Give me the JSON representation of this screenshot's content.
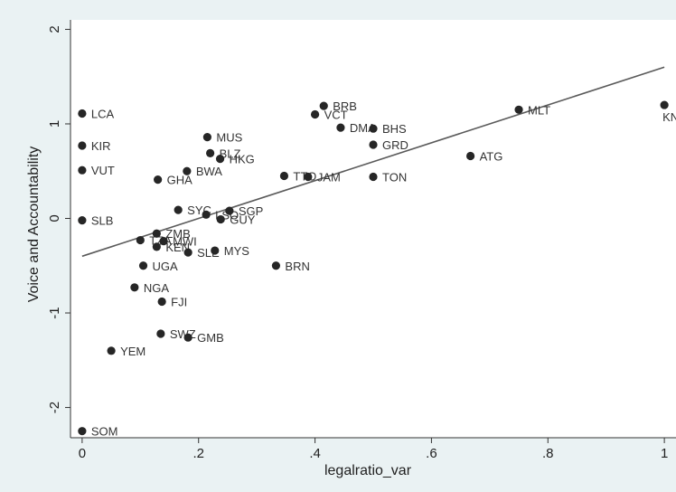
{
  "chart_data": {
    "type": "scatter",
    "xlabel": "legalratio_var",
    "ylabel": "Voice and Accountability",
    "xlim": [
      -0.02,
      1.02
    ],
    "ylim": [
      -2.32,
      2.1
    ],
    "xticks": [
      {
        "v": 0,
        "label": "0"
      },
      {
        "v": 0.2,
        "label": ".2"
      },
      {
        "v": 0.4,
        "label": ".4"
      },
      {
        "v": 0.6,
        "label": ".6"
      },
      {
        "v": 0.8,
        "label": ".8"
      },
      {
        "v": 1,
        "label": "1"
      }
    ],
    "yticks": [
      {
        "v": -2,
        "label": "-2"
      },
      {
        "v": -1,
        "label": "-1"
      },
      {
        "v": 0,
        "label": "0"
      },
      {
        "v": 1,
        "label": "1"
      },
      {
        "v": 2,
        "label": "2"
      }
    ],
    "grid": false,
    "colors": {
      "background": "#ffffff",
      "panel": "#eaf2f3",
      "plot": "#ffffff",
      "marker": "#262626",
      "line": "#5a5a5a"
    },
    "fit_line": {
      "x": [
        0,
        1
      ],
      "y": [
        -0.4,
        1.6
      ]
    },
    "points": [
      {
        "label": "LCA",
        "x": 0.0,
        "y": 1.11
      },
      {
        "label": "KIR",
        "x": 0.0,
        "y": 0.77
      },
      {
        "label": "VUT",
        "x": 0.0,
        "y": 0.51
      },
      {
        "label": "SLB",
        "x": 0.0,
        "y": -0.02
      },
      {
        "label": "SOM",
        "x": 0.0,
        "y": -2.25
      },
      {
        "label": "YEM",
        "x": 0.05,
        "y": -1.4
      },
      {
        "label": "NGA",
        "x": 0.09,
        "y": -0.73
      },
      {
        "label": "TZA",
        "x": 0.1,
        "y": -0.23
      },
      {
        "label": "UGA",
        "x": 0.105,
        "y": -0.5
      },
      {
        "label": "ZMB",
        "x": 0.128,
        "y": -0.16
      },
      {
        "label": "KEN",
        "x": 0.128,
        "y": -0.3
      },
      {
        "label": "GHA",
        "x": 0.13,
        "y": 0.41
      },
      {
        "label": "SWZ",
        "x": 0.135,
        "y": -1.22
      },
      {
        "label": "FJI",
        "x": 0.137,
        "y": -0.88
      },
      {
        "label": "MWI",
        "x": 0.14,
        "y": -0.24
      },
      {
        "label": "SYC",
        "x": 0.165,
        "y": 0.09
      },
      {
        "label": "BWA",
        "x": 0.18,
        "y": 0.5
      },
      {
        "label": "SLE",
        "x": 0.182,
        "y": -0.36
      },
      {
        "label": "GMB",
        "x": 0.182,
        "y": -1.26
      },
      {
        "label": "MUS",
        "x": 0.215,
        "y": 0.86
      },
      {
        "label": "LSO",
        "x": 0.213,
        "y": 0.04
      },
      {
        "label": "BLZ",
        "x": 0.22,
        "y": 0.69
      },
      {
        "label": "MYS",
        "x": 0.228,
        "y": -0.34
      },
      {
        "label": "HKG",
        "x": 0.237,
        "y": 0.63
      },
      {
        "label": "GUY",
        "x": 0.238,
        "y": -0.01
      },
      {
        "label": "SGP",
        "x": 0.253,
        "y": 0.08
      },
      {
        "label": "BRN",
        "x": 0.333,
        "y": -0.5
      },
      {
        "label": "TTO",
        "x": 0.347,
        "y": 0.45
      },
      {
        "label": "JAM",
        "x": 0.388,
        "y": 0.44
      },
      {
        "label": "VCT",
        "x": 0.4,
        "y": 1.1
      },
      {
        "label": "BRB",
        "x": 0.415,
        "y": 1.19
      },
      {
        "label": "DMA",
        "x": 0.444,
        "y": 0.96
      },
      {
        "label": "BHS",
        "x": 0.5,
        "y": 0.95
      },
      {
        "label": "GRD",
        "x": 0.5,
        "y": 0.78
      },
      {
        "label": "TON",
        "x": 0.5,
        "y": 0.44
      },
      {
        "label": "ATG",
        "x": 0.667,
        "y": 0.66
      },
      {
        "label": "MLT",
        "x": 0.75,
        "y": 1.15
      },
      {
        "label": "KNA",
        "x": 1.0,
        "y": 1.2
      }
    ]
  }
}
